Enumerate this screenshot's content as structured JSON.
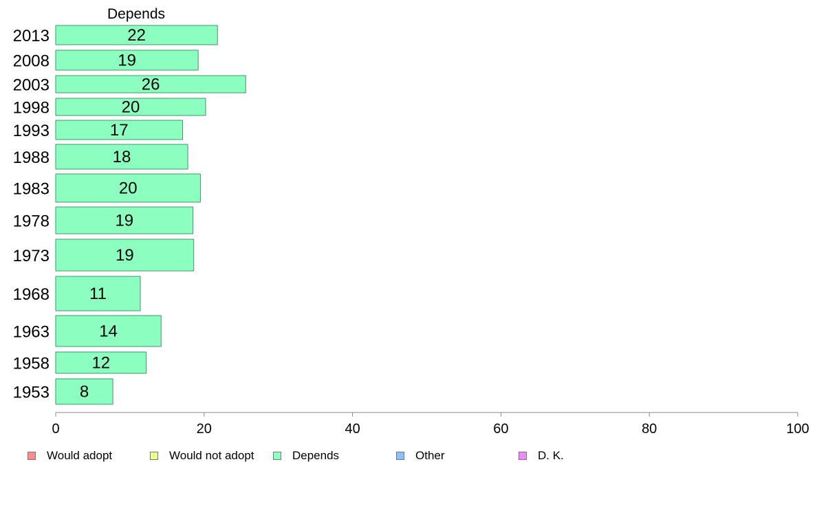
{
  "chart_data": {
    "type": "bar",
    "orientation": "horizontal",
    "panel_title": "Depends",
    "categories": [
      "2013",
      "2008",
      "2003",
      "1998",
      "1993",
      "1988",
      "1983",
      "1978",
      "1973",
      "1968",
      "1963",
      "1958",
      "1953"
    ],
    "values": [
      22,
      19,
      26,
      20,
      17,
      18,
      20,
      19,
      19,
      11,
      14,
      12,
      8
    ],
    "plotted_values": [
      21.8,
      19.2,
      25.6,
      20.2,
      17.1,
      17.8,
      19.5,
      18.5,
      18.6,
      11.4,
      14.2,
      12.2,
      7.7
    ],
    "bar_color": "#8cffc0",
    "bar_stroke": "#3a9a66",
    "xlim": [
      0,
      100
    ],
    "xticks": [
      "0",
      "20",
      "40",
      "60",
      "80",
      "100"
    ],
    "legend": [
      {
        "label": "Would adopt",
        "color": "#ff8c8c"
      },
      {
        "label": "Would not adopt",
        "color": "#eeff8c"
      },
      {
        "label": "Depends",
        "color": "#8cffc0"
      },
      {
        "label": "Other",
        "color": "#8cc0ff"
      },
      {
        "label": "D. K.",
        "color": "#ee8cff"
      }
    ],
    "legend_position": "bottom",
    "grid": false
  }
}
